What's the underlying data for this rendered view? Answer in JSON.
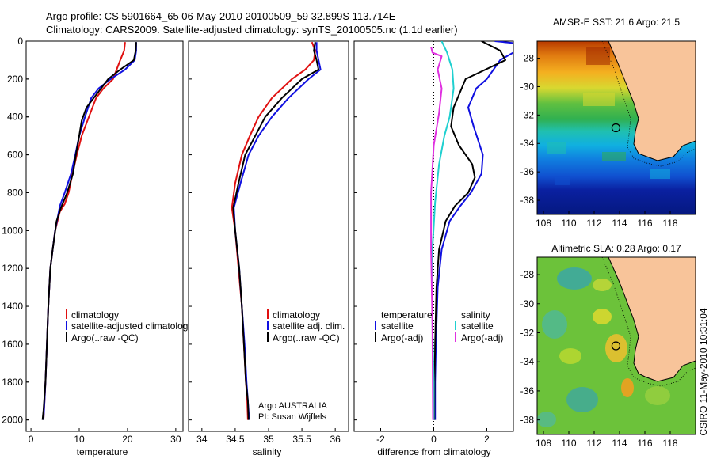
{
  "header": {
    "title_line1": "Argo profile: CS 5901664_65 06-May-2010 20100509_59 32.899S 113.714E",
    "title_line2": "Climatology: CARS2009. Satellite-adjusted climatology: synTS_20100505.nc (1.1d earlier)"
  },
  "footer": {
    "stamp": "CSIRO 11-May-2010 10:31:04"
  },
  "chart_data": [
    {
      "id": "temperature",
      "type": "line",
      "xlabel": "temperature",
      "ylabel": "",
      "xlim": [
        -1,
        31.5
      ],
      "ylim": [
        0,
        2060
      ],
      "y_reversed": true,
      "xticks": [
        0,
        10,
        20,
        30
      ],
      "yticks": [
        0,
        200,
        400,
        600,
        800,
        1000,
        1200,
        1400,
        1600,
        1800,
        2000
      ],
      "legend": {
        "placement": "center-right",
        "entries": [
          "climatology",
          "satellite-adjusted climatology",
          "Argo(..raw -QC)"
        ]
      },
      "series": [
        {
          "name": "climatology",
          "color": "#e01010",
          "x": [
            19.5,
            19.3,
            18.5,
            17.0,
            15.0,
            13.5,
            12.0,
            10.5,
            9.5,
            8.6,
            7.8,
            7.0,
            6.0,
            5.0,
            4.5,
            4.0,
            3.6,
            3.3,
            3.0,
            2.8,
            2.6
          ],
          "y": [
            5,
            50,
            100,
            200,
            250,
            300,
            400,
            500,
            600,
            700,
            800,
            860,
            900,
            1000,
            1100,
            1200,
            1400,
            1600,
            1800,
            1900,
            2000
          ]
        },
        {
          "name": "satellite-adjusted climatology",
          "color": "#1010e0",
          "x": [
            21.8,
            21.8,
            21.5,
            19.5,
            16.5,
            14.0,
            12.5,
            11.2,
            10.0,
            9.2,
            8.3,
            7.0,
            6.0,
            5.0,
            4.5,
            4.0,
            3.6,
            3.3,
            3.0,
            2.8,
            2.6
          ],
          "y": [
            5,
            50,
            100,
            150,
            200,
            250,
            300,
            400,
            500,
            600,
            700,
            800,
            870,
            1000,
            1100,
            1200,
            1400,
            1600,
            1800,
            1900,
            2000
          ]
        },
        {
          "name": "Argo(..raw -QC)",
          "color": "#000000",
          "x": [
            21.8,
            21.7,
            21.3,
            18.5,
            16.0,
            13.0,
            11.5,
            10.5,
            10.0,
            9.3,
            8.7,
            7.5,
            6.2,
            5.3,
            4.5,
            4.0,
            3.6,
            3.3,
            3.0,
            2.6,
            2.4
          ],
          "y": [
            5,
            50,
            100,
            150,
            200,
            300,
            350,
            420,
            500,
            600,
            700,
            800,
            880,
            950,
            1100,
            1200,
            1400,
            1600,
            1800,
            1950,
            2000
          ]
        }
      ]
    },
    {
      "id": "salinity",
      "type": "line",
      "xlabel": "salinity",
      "ylabel": "",
      "xlim": [
        33.8,
        36.2
      ],
      "ylim": [
        0,
        2060
      ],
      "y_reversed": true,
      "xticks": [
        34,
        34.5,
        35,
        35.5,
        36
      ],
      "legend": {
        "placement": "center-right",
        "entries": [
          "climatology",
          "satellite adj. clim.",
          "Argo(..raw -QC)"
        ]
      },
      "annotations": [
        "Argo AUSTRALIA",
        "PI: Susan Wijffels"
      ],
      "series": [
        {
          "name": "climatology",
          "color": "#e01010",
          "x": [
            35.65,
            35.7,
            35.68,
            35.55,
            35.35,
            35.05,
            34.85,
            34.72,
            34.6,
            34.5,
            34.45,
            34.5,
            34.55,
            34.6,
            34.63,
            34.66,
            34.68,
            34.69
          ],
          "y": [
            5,
            50,
            100,
            150,
            200,
            300,
            400,
            500,
            600,
            750,
            880,
            1000,
            1200,
            1400,
            1600,
            1800,
            1900,
            2000
          ]
        },
        {
          "name": "satellite adj. clim.",
          "color": "#1010e0",
          "x": [
            35.72,
            35.72,
            35.75,
            35.78,
            35.6,
            35.3,
            35.05,
            34.85,
            34.7,
            34.58,
            34.48,
            34.5,
            34.56,
            34.6,
            34.64,
            34.67,
            34.69,
            34.71
          ],
          "y": [
            5,
            50,
            100,
            150,
            200,
            300,
            400,
            500,
            600,
            750,
            880,
            1000,
            1200,
            1400,
            1600,
            1800,
            1900,
            2000
          ]
        },
        {
          "name": "Argo(..raw -QC)",
          "color": "#000000",
          "x": [
            35.7,
            35.68,
            35.72,
            35.75,
            35.5,
            35.2,
            34.95,
            34.8,
            34.65,
            34.55,
            34.47,
            34.5,
            34.56,
            34.6,
            34.63,
            34.66,
            34.69,
            34.7
          ],
          "y": [
            5,
            50,
            100,
            150,
            200,
            300,
            400,
            500,
            600,
            750,
            880,
            1000,
            1200,
            1400,
            1600,
            1800,
            1900,
            2000
          ]
        }
      ]
    },
    {
      "id": "difference",
      "type": "line",
      "xlabel": "difference from climatology",
      "ylabel": "",
      "xlim": [
        -3,
        3
      ],
      "ylim": [
        0,
        2060
      ],
      "y_reversed": true,
      "xticks": [
        -2,
        0,
        2
      ],
      "legend": {
        "placement": "center",
        "temperature_heading": "temperature",
        "salinity_heading": "salinity",
        "temperature_entries": [
          "satellite",
          "Argo(-adj)"
        ],
        "salinity_entries": [
          "satellite",
          "Argo(-adj)"
        ]
      },
      "series": [
        {
          "name": "temperature satellite",
          "color": "#1010e0",
          "x": [
            2.3,
            3.0,
            3.0,
            2.5,
            2.0,
            1.6,
            1.3,
            1.5,
            1.85,
            1.8,
            1.4,
            1.0,
            0.6,
            0.3,
            0.15,
            0.08,
            0.05,
            0.05
          ],
          "y": [
            0,
            10,
            60,
            100,
            200,
            250,
            350,
            450,
            600,
            700,
            800,
            870,
            950,
            1100,
            1300,
            1600,
            1800,
            2000
          ]
        },
        {
          "name": "temperature Argo(-adj)",
          "color": "#000000",
          "x": [
            1.8,
            2.5,
            2.7,
            1.2,
            1.05,
            0.75,
            0.65,
            0.95,
            1.45,
            1.55,
            1.3,
            0.8,
            0.45,
            0.2,
            0.1,
            0.05,
            0.03,
            0.02
          ],
          "y": [
            0,
            50,
            100,
            200,
            250,
            350,
            450,
            550,
            650,
            720,
            800,
            870,
            950,
            1100,
            1300,
            1600,
            1800,
            2000
          ]
        },
        {
          "name": "salinity satellite",
          "color": "#20d0d0",
          "x": [
            0.3,
            0.5,
            0.7,
            0.75,
            0.6,
            0.4,
            0.2,
            0.05,
            -0.05,
            -0.05,
            0.0,
            0.0
          ],
          "y": [
            0,
            60,
            150,
            250,
            400,
            500,
            650,
            850,
            1100,
            1500,
            1800,
            2000
          ]
        },
        {
          "name": "salinity Argo(-adj)",
          "color": "#e030e0",
          "x": [
            -0.1,
            -0.05,
            0.3,
            0.15,
            0.3,
            0.2,
            0.0,
            -0.1,
            -0.1,
            -0.05,
            -0.03
          ],
          "y": [
            30,
            60,
            80,
            150,
            250,
            380,
            550,
            800,
            1100,
            1500,
            2000
          ]
        }
      ]
    },
    {
      "id": "sst-map",
      "type": "heatmap",
      "title": "AMSR-E SST: 21.6 Argo: 21.5",
      "xticks": [
        "108",
        "110",
        "112",
        "114",
        "116",
        "118"
      ],
      "yticks": [
        "-28",
        "-30",
        "-32",
        "-34",
        "-36",
        "-38"
      ],
      "xlim": [
        107.5,
        120
      ],
      "ylim": [
        -39,
        -26.8
      ],
      "marker": {
        "lon": 113.714,
        "lat": -32.899
      }
    },
    {
      "id": "sla-map",
      "type": "heatmap",
      "title": "Altimetric SLA: 0.28 Argo: 0.17",
      "xticks": [
        "108",
        "110",
        "112",
        "114",
        "116",
        "118"
      ],
      "yticks": [
        "-28",
        "-30",
        "-32",
        "-34",
        "-36",
        "-38"
      ],
      "xlim": [
        107.5,
        120
      ],
      "ylim": [
        -39,
        -26.8
      ],
      "marker": {
        "lon": 113.714,
        "lat": -32.899
      }
    }
  ]
}
